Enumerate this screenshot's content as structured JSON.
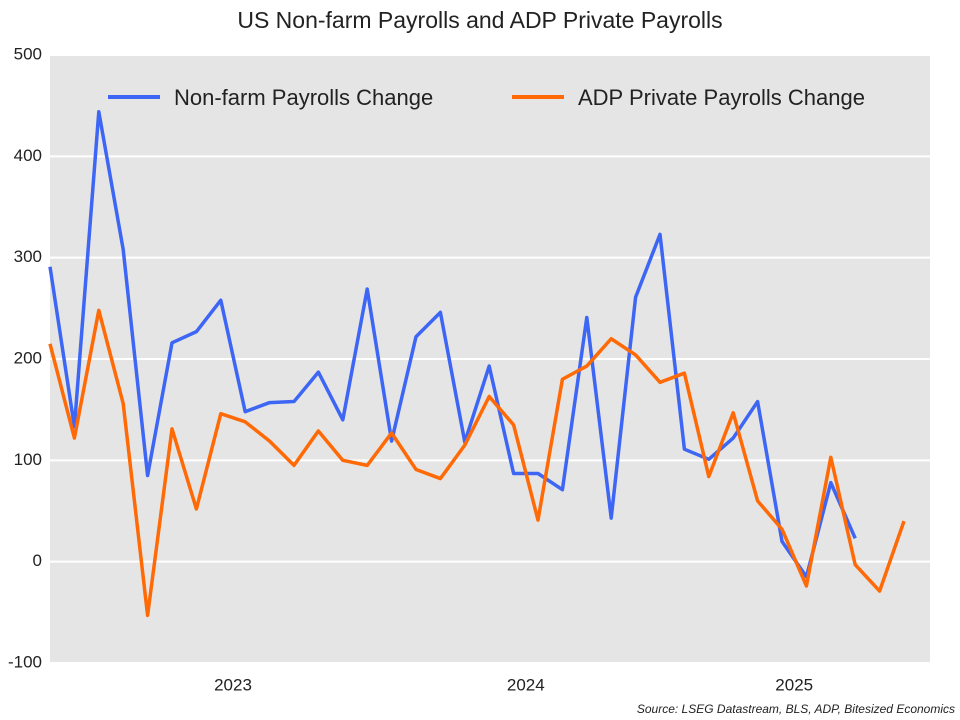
{
  "chart_data": {
    "type": "line",
    "title": "US Non-farm Payrolls and ADP Private Payrolls",
    "source": "Source: LSEG Datastream, BLS, ADP, Bitesized Economics",
    "categories": [
      null,
      null,
      null,
      null,
      null,
      null,
      null,
      "2023",
      null,
      null,
      null,
      null,
      null,
      null,
      null,
      null,
      null,
      null,
      null,
      "2024",
      null,
      null,
      null,
      null,
      null,
      null,
      null,
      null,
      null,
      null,
      "2025",
      null,
      null,
      null,
      null,
      null
    ],
    "series": [
      {
        "name": "Non-farm Payrolls Change",
        "color": "#3d66f5",
        "values": [
          291,
          133,
          444,
          308,
          85,
          216,
          227,
          258,
          148,
          157,
          158,
          187,
          140,
          269,
          119,
          222,
          246,
          118,
          193,
          87,
          87,
          71,
          241,
          43,
          261,
          323,
          111,
          101,
          122,
          158,
          20,
          -15,
          78,
          23,
          null,
          null
        ]
      },
      {
        "name": "ADP Private Payrolls Change",
        "color": "#ff6a06",
        "values": [
          215,
          122,
          248,
          156,
          -53,
          131,
          52,
          146,
          138,
          119,
          95,
          129,
          100,
          95,
          127,
          91,
          82,
          115,
          163,
          135,
          41,
          180,
          193,
          220,
          204,
          177,
          186,
          84,
          147,
          60,
          32,
          -24,
          103,
          -3,
          -29,
          40
        ]
      }
    ],
    "ylim": [
      -100,
      500
    ],
    "yticks": [
      -100,
      0,
      100,
      200,
      300,
      400,
      500
    ],
    "grid": true,
    "legend": "top"
  }
}
